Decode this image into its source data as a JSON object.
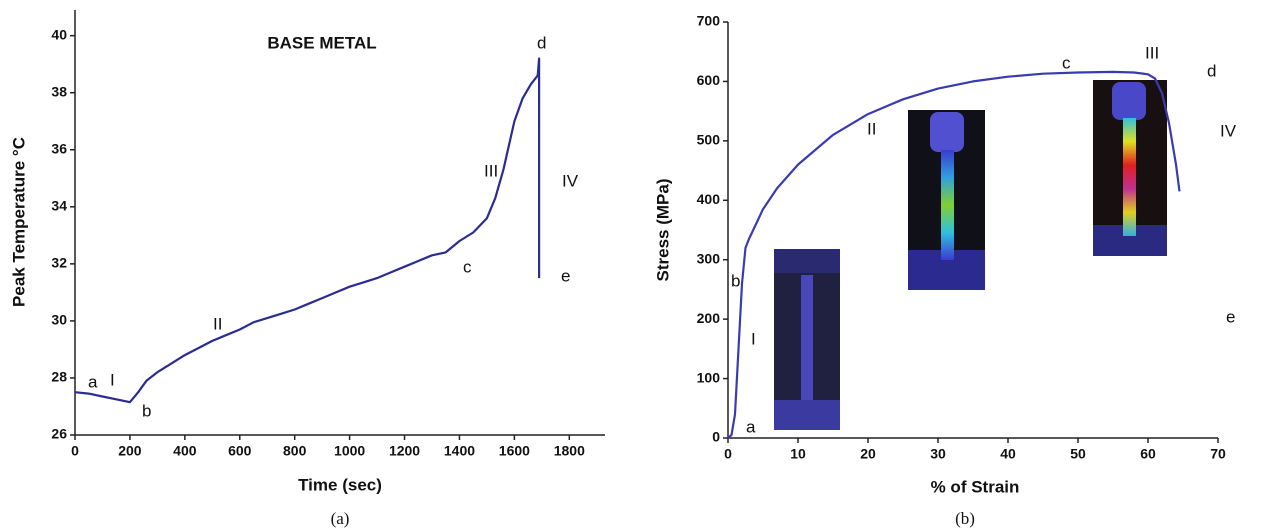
{
  "chart_data": [
    {
      "type": "line",
      "title": "BASE METAL",
      "x_label": "Time (sec)",
      "y_label": "Peak Temperature °C",
      "caption": "(a)",
      "color": "#2b2c92",
      "x": [
        0,
        50,
        100,
        150,
        200,
        230,
        260,
        300,
        350,
        400,
        450,
        500,
        550,
        600,
        650,
        700,
        750,
        800,
        850,
        900,
        950,
        1000,
        1050,
        1100,
        1150,
        1200,
        1250,
        1300,
        1350,
        1400,
        1450,
        1500,
        1530,
        1560,
        1600,
        1630,
        1660,
        1685,
        1690,
        1690
      ],
      "values": [
        27.5,
        27.45,
        27.35,
        27.25,
        27.15,
        27.5,
        27.9,
        28.2,
        28.5,
        28.8,
        29.05,
        29.3,
        29.5,
        29.7,
        29.95,
        30.1,
        30.25,
        30.4,
        30.6,
        30.8,
        31.0,
        31.2,
        31.35,
        31.5,
        31.7,
        31.9,
        32.1,
        32.3,
        32.4,
        32.8,
        33.1,
        33.6,
        34.3,
        35.3,
        37.0,
        37.8,
        38.3,
        38.6,
        39.2,
        31.5
      ],
      "xlim": [
        0,
        1930
      ],
      "ylim": [
        26,
        40.9
      ],
      "xticks": [
        0,
        200,
        400,
        600,
        800,
        1000,
        1200,
        1400,
        1600,
        1800
      ],
      "yticks": [
        26,
        28,
        30,
        32,
        34,
        36,
        38,
        40
      ],
      "annotations": [
        "a",
        "I",
        "b",
        "II",
        "c",
        "III",
        "d",
        "IV",
        "e"
      ]
    },
    {
      "type": "line",
      "x_label": "% of Strain",
      "y_label": "Stress (MPa)",
      "caption": "(b)",
      "color": "#3b3bb0",
      "x": [
        0,
        0.5,
        1,
        1.5,
        2,
        2.5,
        3,
        4,
        5,
        7,
        10,
        15,
        20,
        25,
        30,
        35,
        40,
        45,
        50,
        55,
        58,
        60,
        61,
        62,
        63,
        64,
        64.5
      ],
      "values": [
        0,
        5,
        40,
        150,
        260,
        320,
        335,
        360,
        385,
        420,
        460,
        510,
        545,
        570,
        588,
        600,
        608,
        613,
        615,
        616,
        615,
        612,
        605,
        580,
        530,
        460,
        415
      ],
      "xlim": [
        0,
        70
      ],
      "ylim": [
        0,
        700
      ],
      "xticks": [
        0,
        10,
        20,
        30,
        40,
        50,
        60,
        70
      ],
      "yticks": [
        0,
        100,
        200,
        300,
        400,
        500,
        600,
        700
      ],
      "annotations": [
        "a",
        "I",
        "b",
        "II",
        "c",
        "III",
        "d",
        "IV",
        "e"
      ]
    }
  ]
}
